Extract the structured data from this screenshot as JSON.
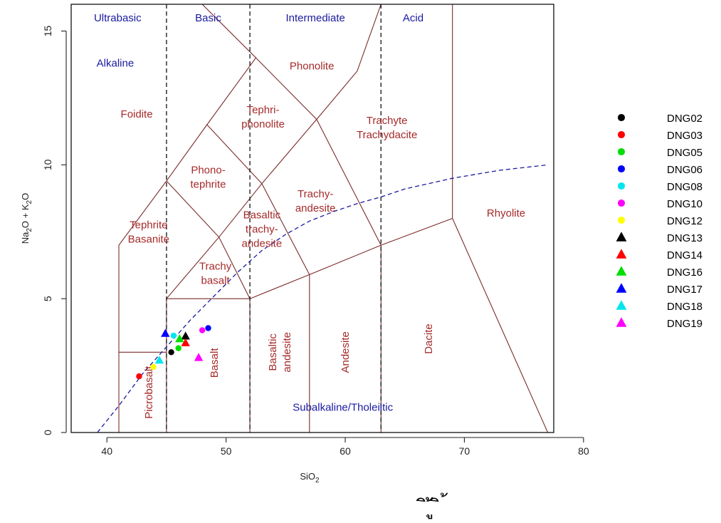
{
  "chart_data": {
    "type": "scatter",
    "title": "",
    "xlabel": "SiO",
    "xlabel_sub": "2",
    "ylabel_parts": [
      {
        "t": "Na",
        "sub": false
      },
      {
        "t": "2",
        "sub": true
      },
      {
        "t": "O + K",
        "sub": false
      },
      {
        "t": "2",
        "sub": true
      },
      {
        "t": "O",
        "sub": false
      }
    ],
    "xlim": [
      37,
      77.5
    ],
    "ylim": [
      0,
      16
    ],
    "x_ticks": [
      40,
      50,
      60,
      70,
      80
    ],
    "y_ticks": [
      0,
      5,
      10,
      15
    ],
    "grid": false,
    "legend_position": "right",
    "divider_lines_x": [
      45,
      52,
      63
    ],
    "classes_top": [
      {
        "label": "Ultrabasic",
        "x": 40.9,
        "y": 15.5
      },
      {
        "label": "Basic",
        "x": 48.5,
        "y": 15.5
      },
      {
        "label": "Intermediate",
        "x": 57.5,
        "y": 15.5
      },
      {
        "label": "Acid",
        "x": 65.7,
        "y": 15.5
      }
    ],
    "series_labels": [
      {
        "label": "Alkaline",
        "x": 40.7,
        "y": 13.8,
        "anchor": "middle"
      },
      {
        "label": "Subalkaline/Tholeiitic",
        "x": 59.8,
        "y": 0.95,
        "anchor": "middle"
      }
    ],
    "field_labels": [
      {
        "lines": [
          "Foidite"
        ],
        "x": 42.5,
        "y": 11.9,
        "rotate": 0
      },
      {
        "lines": [
          "Phonolite"
        ],
        "x": 57.2,
        "y": 13.7,
        "rotate": 0
      },
      {
        "lines": [
          "Tephri-",
          "phonolite"
        ],
        "x": 53.1,
        "y": 11.8,
        "rotate": 0
      },
      {
        "lines": [
          "Trachyte",
          "Trachydacite"
        ],
        "x": 63.5,
        "y": 11.4,
        "rotate": 0
      },
      {
        "lines": [
          "Phono-",
          "tephrite"
        ],
        "x": 48.5,
        "y": 9.55,
        "rotate": 0
      },
      {
        "lines": [
          "Trachy-",
          "andesite"
        ],
        "x": 57.5,
        "y": 8.65,
        "rotate": 0
      },
      {
        "lines": [
          "Rhyolite"
        ],
        "x": 73.5,
        "y": 8.2,
        "rotate": 0
      },
      {
        "lines": [
          "Tephrite",
          "Basanite"
        ],
        "x": 43.5,
        "y": 7.5,
        "rotate": 0
      },
      {
        "lines": [
          "Basaltic",
          "trachy-",
          "andesite"
        ],
        "x": 53.0,
        "y": 7.6,
        "rotate": 0
      },
      {
        "lines": [
          "Trachy",
          "basalt"
        ],
        "x": 49.1,
        "y": 5.95,
        "rotate": 0
      },
      {
        "lines": [
          "Basalt"
        ],
        "x": 49.0,
        "y": 2.6,
        "rotate": -90
      },
      {
        "lines": [
          "Picrobasalt"
        ],
        "x": 43.5,
        "y": 1.5,
        "rotate": -90
      },
      {
        "lines": [
          "Basaltic",
          "andesite"
        ],
        "x": 54.5,
        "y": 3.0,
        "rotate": -90
      },
      {
        "lines": [
          "Andesite"
        ],
        "x": 60.0,
        "y": 3.0,
        "rotate": -90
      },
      {
        "lines": [
          "Dacite"
        ],
        "x": 67.0,
        "y": 3.5,
        "rotate": -90
      }
    ],
    "boundaries": [
      [
        [
          41,
          0
        ],
        [
          41,
          7
        ],
        [
          45,
          9.4
        ],
        [
          48.4,
          11.5
        ],
        [
          52.5,
          14
        ],
        [
          48,
          16
        ]
      ],
      [
        [
          41,
          3
        ],
        [
          45,
          3
        ]
      ],
      [
        [
          45,
          0
        ],
        [
          45,
          5
        ]
      ],
      [
        [
          45,
          5
        ],
        [
          52,
          5
        ]
      ],
      [
        [
          45,
          9.4
        ],
        [
          49.4,
          7.3
        ],
        [
          52,
          5
        ]
      ],
      [
        [
          45,
          5
        ],
        [
          49.4,
          7.3
        ],
        [
          53,
          9.3
        ],
        [
          57.6,
          11.7
        ],
        [
          61,
          13.5
        ],
        [
          63,
          16
        ]
      ],
      [
        [
          48.4,
          11.5
        ],
        [
          53,
          9.3
        ],
        [
          57,
          5.9
        ],
        [
          57,
          0
        ]
      ],
      [
        [
          52,
          0
        ],
        [
          52,
          5
        ],
        [
          57,
          5.9
        ],
        [
          63,
          7
        ],
        [
          69,
          8
        ]
      ],
      [
        [
          52.5,
          14
        ],
        [
          57.6,
          11.7
        ]
      ],
      [
        [
          57.6,
          11.7
        ],
        [
          63,
          7
        ],
        [
          63,
          0
        ]
      ],
      [
        [
          69,
          16
        ],
        [
          69,
          8
        ],
        [
          77,
          0
        ]
      ]
    ],
    "alkaline_curve": [
      [
        39.2,
        0
      ],
      [
        41,
        1
      ],
      [
        43,
        2.2
      ],
      [
        45,
        3.2
      ],
      [
        47,
        4.2
      ],
      [
        49,
        5.1
      ],
      [
        51,
        6
      ],
      [
        53,
        6.8
      ],
      [
        55,
        7.4
      ],
      [
        57,
        7.9
      ],
      [
        59,
        8.25
      ],
      [
        61,
        8.55
      ],
      [
        63,
        8.8
      ],
      [
        65,
        9.1
      ],
      [
        67,
        9.3
      ],
      [
        69,
        9.5
      ],
      [
        71,
        9.65
      ],
      [
        73,
        9.8
      ],
      [
        75,
        9.9
      ],
      [
        77,
        10
      ]
    ],
    "series": [
      {
        "name": "DNG02",
        "marker": "circle",
        "color": "#000000",
        "points": [
          [
            45.4,
            3.0
          ]
        ]
      },
      {
        "name": "DNG03",
        "marker": "circle",
        "color": "#ff0000",
        "points": [
          [
            42.7,
            2.1
          ]
        ]
      },
      {
        "name": "DNG05",
        "marker": "circle",
        "color": "#00dd00",
        "points": [
          [
            46.0,
            3.15
          ]
        ]
      },
      {
        "name": "DNG06",
        "marker": "circle",
        "color": "#0000ff",
        "points": [
          [
            48.5,
            3.9
          ]
        ]
      },
      {
        "name": "DNG08",
        "marker": "circle",
        "color": "#00e5ee",
        "points": [
          [
            45.6,
            3.62
          ]
        ]
      },
      {
        "name": "DNG10",
        "marker": "circle",
        "color": "#ff00ff",
        "points": [
          [
            48.0,
            3.82
          ]
        ]
      },
      {
        "name": "DNG12",
        "marker": "circle",
        "color": "#ffff00",
        "points": [
          [
            43.9,
            2.45
          ]
        ]
      },
      {
        "name": "DNG13",
        "marker": "triangle",
        "color": "#000000",
        "points": [
          [
            46.6,
            3.6
          ]
        ]
      },
      {
        "name": "DNG14",
        "marker": "triangle",
        "color": "#ff0000",
        "points": [
          [
            46.6,
            3.35
          ]
        ]
      },
      {
        "name": "DNG16",
        "marker": "triangle",
        "color": "#00dd00",
        "points": [
          [
            46.1,
            3.5
          ]
        ]
      },
      {
        "name": "DNG17",
        "marker": "triangle",
        "color": "#0000ff",
        "points": [
          [
            44.9,
            3.7
          ]
        ]
      },
      {
        "name": "DNG18",
        "marker": "triangle",
        "color": "#00e5ee",
        "points": [
          [
            44.4,
            2.7
          ]
        ]
      },
      {
        "name": "DNG19",
        "marker": "triangle",
        "color": "#ff00ff",
        "points": [
          [
            47.7,
            2.8
          ]
        ]
      }
    ]
  },
  "footer_overlay": "ิ ู้ ิ ้"
}
